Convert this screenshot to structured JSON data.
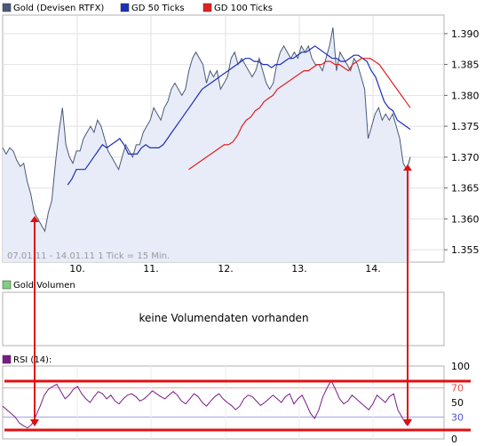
{
  "legend": {
    "main": [
      {
        "label": "Gold (Devisen RTFX)",
        "color": "#4a5a78"
      },
      {
        "label": "GD 50 Ticks",
        "color": "#1c2fb8"
      },
      {
        "label": "GD 100 Ticks",
        "color": "#e02020"
      }
    ],
    "volume_label": "Gold Volumen",
    "volume_color": "#7fd07f",
    "rsi_label": "RSI (14):",
    "rsi_color": "#7a1a8a"
  },
  "info_text": "07.01.11 - 14.01.11   1 Tick = 15 Min.",
  "volume_message": "keine Volumendaten vorhanden",
  "chart_data": [
    {
      "type": "line",
      "title": "",
      "x_ticks": [
        "10.",
        "11.",
        "12.",
        "13.",
        "14."
      ],
      "ylim": [
        1.353,
        1.393
      ],
      "y_ticks": [
        "1.390",
        "1.385",
        "1.380",
        "1.375",
        "1.370",
        "1.365",
        "1.360",
        "1.355"
      ],
      "grid": true,
      "series": [
        {
          "name": "Gold (Devisen RTFX)",
          "color": "#4a5a78",
          "values": [
            1.3715,
            1.3705,
            1.3715,
            1.371,
            1.3695,
            1.3685,
            1.369,
            1.366,
            1.364,
            1.361,
            1.36,
            1.359,
            1.358,
            1.361,
            1.363,
            1.369,
            1.374,
            1.378,
            1.372,
            1.37,
            1.369,
            1.371,
            1.371,
            1.373,
            1.374,
            1.375,
            1.374,
            1.376,
            1.375,
            1.373,
            1.371,
            1.37,
            1.369,
            1.368,
            1.37,
            1.372,
            1.371,
            1.37,
            1.372,
            1.372,
            1.374,
            1.375,
            1.376,
            1.378,
            1.377,
            1.376,
            1.378,
            1.379,
            1.381,
            1.382,
            1.381,
            1.38,
            1.381,
            1.384,
            1.386,
            1.387,
            1.386,
            1.385,
            1.382,
            1.384,
            1.383,
            1.384,
            1.381,
            1.382,
            1.383,
            1.386,
            1.387,
            1.385,
            1.386,
            1.385,
            1.384,
            1.383,
            1.384,
            1.386,
            1.384,
            1.382,
            1.381,
            1.382,
            1.385,
            1.387,
            1.388,
            1.387,
            1.386,
            1.387,
            1.386,
            1.388,
            1.387,
            1.388,
            1.386,
            1.385,
            1.385,
            1.384,
            1.386,
            1.388,
            1.391,
            1.384,
            1.387,
            1.386,
            1.385,
            1.384,
            1.386,
            1.385,
            1.383,
            1.381,
            1.373,
            1.375,
            1.377,
            1.378,
            1.376,
            1.377,
            1.376,
            1.377,
            1.375,
            1.373,
            1.369,
            1.368,
            1.37
          ]
        },
        {
          "name": "GD 50 Ticks",
          "color": "#1c2fb8",
          "values": [
            null,
            null,
            null,
            null,
            null,
            null,
            null,
            null,
            null,
            null,
            null,
            null,
            null,
            null,
            null,
            1.3655,
            1.3665,
            1.368,
            1.368,
            1.368,
            1.369,
            1.37,
            1.371,
            1.372,
            1.3715,
            1.372,
            1.3725,
            1.373,
            1.372,
            1.3705,
            1.3705,
            1.3705,
            1.3715,
            1.372,
            1.3715,
            1.3715,
            1.3715,
            1.372,
            1.373,
            1.374,
            1.375,
            1.376,
            1.377,
            1.378,
            1.379,
            1.38,
            1.381,
            1.3815,
            1.382,
            1.3825,
            1.383,
            1.3835,
            1.384,
            1.3845,
            1.385,
            1.3855,
            1.386,
            1.386,
            1.3855,
            1.3855,
            1.385,
            1.385,
            1.3845,
            1.385,
            1.385,
            1.3855,
            1.386,
            1.386,
            1.3865,
            1.387,
            1.387,
            1.3875,
            1.388,
            1.3875,
            1.387,
            1.3865,
            1.386,
            1.386,
            1.3855,
            1.3855,
            1.386,
            1.3865,
            1.3865,
            1.386,
            1.3855,
            1.384,
            1.383,
            1.381,
            1.379,
            1.378,
            1.3775,
            1.376,
            1.3755,
            1.375,
            1.3745
          ]
        },
        {
          "name": "GD 100 Ticks",
          "color": "#e02020",
          "values": [
            null,
            null,
            null,
            null,
            null,
            null,
            null,
            null,
            null,
            null,
            null,
            null,
            null,
            null,
            null,
            null,
            null,
            null,
            null,
            null,
            null,
            null,
            null,
            null,
            null,
            null,
            null,
            null,
            null,
            null,
            null,
            null,
            null,
            null,
            null,
            null,
            null,
            null,
            null,
            null,
            null,
            null,
            1.368,
            1.3685,
            1.369,
            1.3695,
            1.37,
            1.3705,
            1.371,
            1.3715,
            1.372,
            1.372,
            1.3725,
            1.3735,
            1.375,
            1.376,
            1.3765,
            1.3775,
            1.378,
            1.379,
            1.3795,
            1.38,
            1.381,
            1.3815,
            1.382,
            1.3825,
            1.383,
            1.3835,
            1.384,
            1.384,
            1.3845,
            1.385,
            1.385,
            1.3855,
            1.3855,
            1.385,
            1.385,
            1.3845,
            1.384,
            1.385,
            1.3855,
            1.386,
            1.386,
            1.386,
            1.3855,
            1.385,
            1.384,
            1.383,
            1.382,
            1.381,
            1.38,
            1.379,
            1.378
          ]
        }
      ]
    },
    {
      "type": "line",
      "title": "RSI (14):",
      "ylim": [
        0,
        100
      ],
      "y_ticks": [
        "100",
        "70",
        "50",
        "30",
        "0"
      ],
      "reference_lines": [
        70,
        30
      ],
      "series": [
        {
          "name": "RSI (14)",
          "color": "#7a1a8a",
          "values": [
            45,
            40,
            35,
            30,
            22,
            18,
            15,
            20,
            32,
            45,
            60,
            68,
            72,
            75,
            65,
            55,
            60,
            68,
            72,
            62,
            55,
            50,
            58,
            65,
            62,
            55,
            60,
            52,
            48,
            55,
            60,
            62,
            58,
            52,
            55,
            60,
            66,
            62,
            58,
            55,
            60,
            65,
            60,
            52,
            48,
            55,
            62,
            58,
            50,
            45,
            52,
            58,
            62,
            55,
            50,
            46,
            40,
            45,
            55,
            60,
            58,
            52,
            46,
            50,
            55,
            60,
            55,
            50,
            58,
            62,
            48,
            55,
            60,
            48,
            35,
            28,
            40,
            58,
            70,
            80,
            68,
            55,
            48,
            52,
            60,
            55,
            50,
            45,
            40,
            48,
            60,
            55,
            50,
            58,
            62,
            40,
            30,
            20,
            28
          ]
        }
      ]
    }
  ]
}
